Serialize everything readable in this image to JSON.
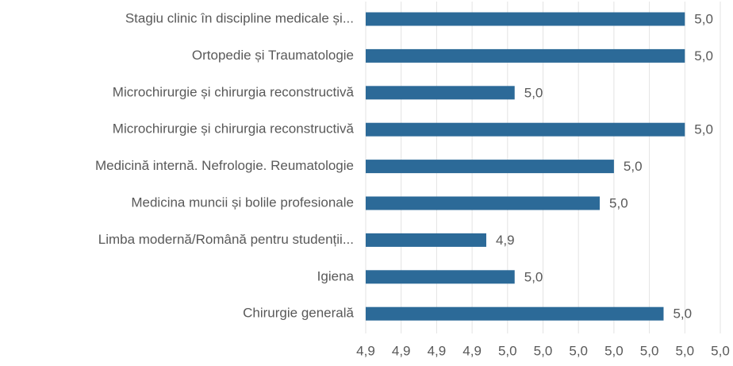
{
  "chart_data": {
    "type": "barh",
    "categories": [
      "Stagiu clinic în discipline medicale și...",
      "Ortopedie și Traumatologie",
      "Microchirurgie și chirurgia reconstructivă",
      "Microchirurgie și chirurgia reconstructivă",
      "Medicină internă. Nefrologie. Reumatologie",
      "Medicina muncii și bolile profesionale",
      "Limba modernă/Română pentru studenții...",
      "Igiena",
      "Chirurgie generală"
    ],
    "values": [
      4.975,
      4.975,
      4.951,
      4.975,
      4.965,
      4.963,
      4.947,
      4.951,
      4.972
    ],
    "value_labels": [
      "5,0",
      "5,0",
      "5,0",
      "5,0",
      "5,0",
      "5,0",
      "4,9",
      "5,0",
      "5,0"
    ],
    "color": "#2c6a98",
    "xlim": [
      4.93,
      4.98
    ],
    "xticks": [
      {
        "value": 4.93,
        "label": "4,9"
      },
      {
        "value": 4.935,
        "label": "4,9"
      },
      {
        "value": 4.94,
        "label": "4,9"
      },
      {
        "value": 4.945,
        "label": "4,9"
      },
      {
        "value": 4.95,
        "label": "5,0"
      },
      {
        "value": 4.955,
        "label": "5,0"
      },
      {
        "value": 4.96,
        "label": "5,0"
      },
      {
        "value": 4.965,
        "label": "5,0"
      },
      {
        "value": 4.97,
        "label": "5,0"
      },
      {
        "value": 4.975,
        "label": "5,0"
      },
      {
        "value": 4.98,
        "label": "5,0"
      }
    ],
    "grid": true
  }
}
